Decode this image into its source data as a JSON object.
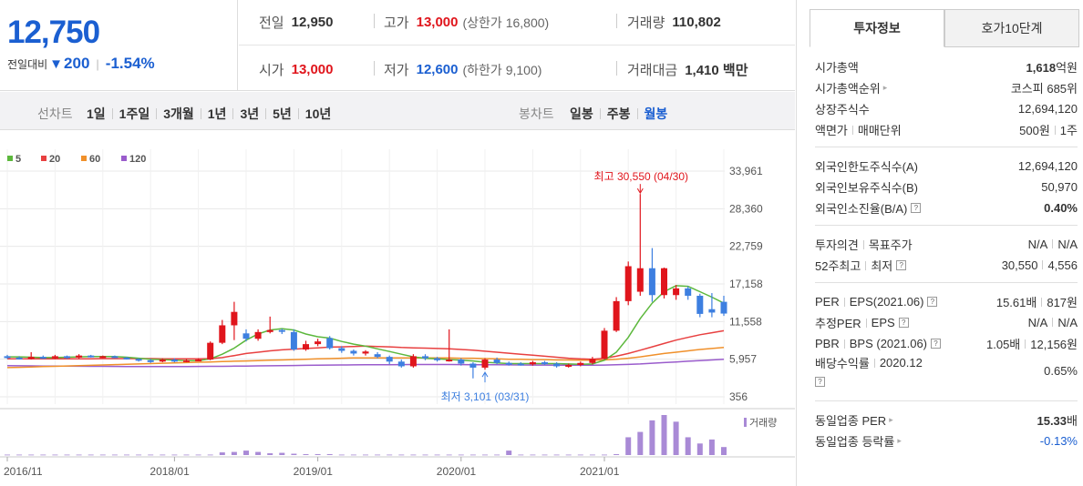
{
  "quote": {
    "price": "12,750",
    "change_label": "전일대비",
    "change_value": "200",
    "change_pct": "-1.54%",
    "prev_label": "전일",
    "prev_value": "12,950",
    "high_label": "고가",
    "high_value": "13,000",
    "upper_limit": "(상한가 16,800)",
    "volume_label": "거래량",
    "volume_value": "110,802",
    "open_label": "시가",
    "open_value": "13,000",
    "low_label": "저가",
    "low_value": "12,600",
    "lower_limit": "(하한가 9,100)",
    "amount_label": "거래대금",
    "amount_value": "1,410 백만"
  },
  "toolbar": {
    "line_label": "선차트",
    "line_items": [
      "1일",
      "1주일",
      "3개월",
      "1년",
      "3년",
      "5년",
      "10년"
    ],
    "candle_label": "봉차트",
    "candle_items": [
      "일봉",
      "주봉",
      "월봉"
    ],
    "candle_active": 2
  },
  "chart_data": {
    "type": "candlestick",
    "legend": [
      {
        "name": "5",
        "color": "#5cb83c"
      },
      {
        "name": "20",
        "color": "#e84040"
      },
      {
        "name": "60",
        "color": "#f0902a"
      },
      {
        "name": "120",
        "color": "#9a5ccc"
      }
    ],
    "yticks": [
      "33,961",
      "28,360",
      "22,759",
      "17,158",
      "11,558",
      "5,957",
      "356"
    ],
    "ytick_values": [
      33961,
      28360,
      22759,
      17158,
      11558,
      5957,
      356
    ],
    "xticks": [
      "2016/11",
      "2018/01",
      "2019/01",
      "2020/01",
      "2021/01"
    ],
    "xtick_index": [
      0,
      14,
      26,
      38,
      50
    ],
    "high_annotation": "최고 30,550 (04/30)",
    "low_annotation": "최저 3,101 (03/31)",
    "high_index": 53,
    "low_index": 40,
    "volume_label": "거래량",
    "candles": [
      {
        "o": 6400,
        "c": 6200,
        "h": 6600,
        "l": 6000
      },
      {
        "o": 6200,
        "c": 6000,
        "h": 6400,
        "l": 5900
      },
      {
        "o": 6000,
        "c": 6300,
        "h": 7000,
        "l": 5900
      },
      {
        "o": 6300,
        "c": 6100,
        "h": 6500,
        "l": 6000
      },
      {
        "o": 6100,
        "c": 6400,
        "h": 6600,
        "l": 6000
      },
      {
        "o": 6400,
        "c": 6200,
        "h": 6500,
        "l": 6000
      },
      {
        "o": 6200,
        "c": 6500,
        "h": 6700,
        "l": 6100
      },
      {
        "o": 6500,
        "c": 6300,
        "h": 6600,
        "l": 6200
      },
      {
        "o": 6300,
        "c": 6400,
        "h": 6500,
        "l": 6100
      },
      {
        "o": 6400,
        "c": 6200,
        "h": 6500,
        "l": 6100
      },
      {
        "o": 6200,
        "c": 6000,
        "h": 6300,
        "l": 5900
      },
      {
        "o": 6000,
        "c": 5800,
        "h": 6100,
        "l": 5600
      },
      {
        "o": 5800,
        "c": 5600,
        "h": 6000,
        "l": 5400
      },
      {
        "o": 5600,
        "c": 5900,
        "h": 6100,
        "l": 5500
      },
      {
        "o": 5900,
        "c": 5600,
        "h": 6100,
        "l": 5500
      },
      {
        "o": 5600,
        "c": 5800,
        "h": 6000,
        "l": 5500
      },
      {
        "o": 5800,
        "c": 5900,
        "h": 6100,
        "l": 5700
      },
      {
        "o": 5900,
        "c": 8400,
        "h": 8600,
        "l": 5800
      },
      {
        "o": 8400,
        "c": 11000,
        "h": 11800,
        "l": 8200
      },
      {
        "o": 11000,
        "c": 13000,
        "h": 14500,
        "l": 8800
      },
      {
        "o": 9800,
        "c": 9000,
        "h": 10400,
        "l": 8600
      },
      {
        "o": 9000,
        "c": 10000,
        "h": 10400,
        "l": 8700
      },
      {
        "o": 10000,
        "c": 10300,
        "h": 12300,
        "l": 9800
      },
      {
        "o": 10300,
        "c": 10100,
        "h": 10500,
        "l": 9700
      },
      {
        "o": 10000,
        "c": 7400,
        "h": 10400,
        "l": 7200
      },
      {
        "o": 7400,
        "c": 8200,
        "h": 8700,
        "l": 7200
      },
      {
        "o": 8200,
        "c": 8600,
        "h": 9000,
        "l": 7900
      },
      {
        "o": 9100,
        "c": 7600,
        "h": 9400,
        "l": 7400
      },
      {
        "o": 7600,
        "c": 7200,
        "h": 7900,
        "l": 6900
      },
      {
        "o": 7200,
        "c": 6800,
        "h": 7400,
        "l": 6500
      },
      {
        "o": 6800,
        "c": 7100,
        "h": 7300,
        "l": 6500
      },
      {
        "o": 6700,
        "c": 6300,
        "h": 7000,
        "l": 6100
      },
      {
        "o": 6300,
        "c": 5600,
        "h": 6500,
        "l": 5200
      },
      {
        "o": 5600,
        "c": 4900,
        "h": 5900,
        "l": 4700
      },
      {
        "o": 4900,
        "c": 6400,
        "h": 6700,
        "l": 4700
      },
      {
        "o": 6400,
        "c": 6100,
        "h": 6700,
        "l": 5800
      },
      {
        "o": 6100,
        "c": 5800,
        "h": 6300,
        "l": 5600
      },
      {
        "o": 5800,
        "c": 5900,
        "h": 10400,
        "l": 5600
      },
      {
        "o": 5900,
        "c": 5300,
        "h": 6100,
        "l": 5000
      },
      {
        "o": 5300,
        "c": 4700,
        "h": 5500,
        "l": 3101
      },
      {
        "o": 4700,
        "c": 5900,
        "h": 6100,
        "l": 4400
      },
      {
        "o": 5900,
        "c": 5400,
        "h": 6200,
        "l": 5200
      },
      {
        "o": 5400,
        "c": 5300,
        "h": 5600,
        "l": 5000
      },
      {
        "o": 5300,
        "c": 5200,
        "h": 5500,
        "l": 5000
      },
      {
        "o": 5200,
        "c": 5500,
        "h": 5700,
        "l": 5000
      },
      {
        "o": 5500,
        "c": 5300,
        "h": 5700,
        "l": 5100
      },
      {
        "o": 5300,
        "c": 4900,
        "h": 5500,
        "l": 4700
      },
      {
        "o": 4900,
        "c": 5100,
        "h": 5300,
        "l": 4700
      },
      {
        "o": 5100,
        "c": 5400,
        "h": 5600,
        "l": 4900
      },
      {
        "o": 5400,
        "c": 6000,
        "h": 6300,
        "l": 5200
      },
      {
        "o": 6000,
        "c": 10200,
        "h": 10600,
        "l": 5900
      },
      {
        "o": 10200,
        "c": 14600,
        "h": 15200,
        "l": 10000
      },
      {
        "o": 14600,
        "c": 19800,
        "h": 20500,
        "l": 14000
      },
      {
        "o": 16000,
        "c": 19500,
        "h": 30550,
        "l": 15400
      },
      {
        "o": 19500,
        "c": 15500,
        "h": 22500,
        "l": 14500
      },
      {
        "o": 15500,
        "c": 19500,
        "h": 19600,
        "l": 15000
      },
      {
        "o": 15500,
        "c": 16500,
        "h": 17000,
        "l": 14800
      },
      {
        "o": 16500,
        "c": 15400,
        "h": 16800,
        "l": 14800
      },
      {
        "o": 15400,
        "c": 12700,
        "h": 15700,
        "l": 12200
      },
      {
        "o": 13400,
        "c": 12900,
        "h": 15800,
        "l": 12200
      },
      {
        "o": 14500,
        "c": 12750,
        "h": 15400,
        "l": 12400
      }
    ],
    "ma5": [
      6300,
      6300,
      6250,
      6200,
      6200,
      6250,
      6300,
      6350,
      6350,
      6350,
      6250,
      6100,
      5950,
      5900,
      5800,
      5750,
      5750,
      6000,
      6700,
      7600,
      8800,
      9700,
      10300,
      10500,
      10300,
      9700,
      9300,
      9100,
      8600,
      8200,
      7900,
      7500,
      7100,
      6700,
      6300,
      6100,
      6000,
      5900,
      5800,
      5700,
      5500,
      5400,
      5300,
      5300,
      5300,
      5300,
      5300,
      5250,
      5200,
      5250,
      5800,
      7000,
      9200,
      12000,
      14300,
      16000,
      16900,
      16800,
      16000,
      15200,
      14300
    ],
    "ma20": [
      6000,
      6000,
      6000,
      6000,
      6000,
      6000,
      6000,
      6000,
      6050,
      6050,
      6050,
      6050,
      6050,
      6000,
      6000,
      6000,
      6000,
      6050,
      6200,
      6500,
      6800,
      7000,
      7200,
      7350,
      7450,
      7550,
      7650,
      7750,
      7800,
      7850,
      7900,
      7850,
      7800,
      7700,
      7650,
      7600,
      7550,
      7500,
      7400,
      7300,
      7150,
      7000,
      6850,
      6700,
      6550,
      6400,
      6250,
      6100,
      6000,
      5950,
      6100,
      6400,
      6800,
      7300,
      7800,
      8300,
      8800,
      9200,
      9600,
      9900,
      10200
    ],
    "ma60": [
      4700,
      4750,
      4800,
      4850,
      4900,
      4950,
      5000,
      5050,
      5100,
      5150,
      5200,
      5250,
      5300,
      5350,
      5400,
      5450,
      5500,
      5550,
      5600,
      5650,
      5700,
      5750,
      5800,
      5850,
      5900,
      5950,
      6000,
      6050,
      6100,
      6150,
      6150,
      6150,
      6150,
      6150,
      6150,
      6150,
      6150,
      6150,
      6100,
      6100,
      6050,
      6000,
      5950,
      5950,
      5900,
      5900,
      5850,
      5850,
      5800,
      5800,
      5850,
      5950,
      6100,
      6300,
      6550,
      6800,
      7000,
      7200,
      7400,
      7550,
      7700
    ],
    "ma120": [
      5000,
      4980,
      4960,
      4940,
      4930,
      4920,
      4910,
      4900,
      4890,
      4880,
      4870,
      4870,
      4870,
      4870,
      4870,
      4870,
      4880,
      4890,
      4900,
      4920,
      4940,
      4960,
      4980,
      5000,
      5020,
      5040,
      5060,
      5080,
      5100,
      5110,
      5120,
      5130,
      5140,
      5150,
      5160,
      5160,
      5160,
      5160,
      5150,
      5140,
      5130,
      5120,
      5110,
      5100,
      5090,
      5080,
      5070,
      5060,
      5060,
      5060,
      5080,
      5120,
      5180,
      5250,
      5350,
      5450,
      5550,
      5650,
      5750,
      5850,
      5950
    ],
    "volume": [
      1,
      1,
      1,
      1,
      1,
      1,
      1,
      1,
      1,
      1,
      1,
      1,
      1,
      1,
      1,
      1,
      1,
      1,
      6,
      7,
      10,
      7,
      4,
      5,
      3,
      2,
      2,
      2,
      1,
      1,
      1,
      1,
      1,
      1,
      1,
      1,
      1,
      1,
      1,
      1,
      1,
      1,
      10,
      1,
      1,
      1,
      1,
      1,
      1,
      1,
      1,
      2,
      40,
      52,
      78,
      90,
      75,
      40,
      26,
      35,
      18
    ]
  },
  "panel": {
    "tabs": [
      "투자정보",
      "호가10단계"
    ],
    "group1": [
      {
        "label": "시가총액",
        "value_b": "1,618",
        "value": "억원"
      },
      {
        "label": "시가총액순위",
        "arrow": true,
        "value": "코스피 685위"
      },
      {
        "label": "상장주식수",
        "value": "12,694,120"
      },
      {
        "label": "액면가",
        "label2": "매매단위",
        "value": "500원",
        "value2": "1주"
      }
    ],
    "group2": [
      {
        "label": "외국인한도주식수(A)",
        "value": "12,694,120"
      },
      {
        "label": "외국인보유주식수(B)",
        "value": "50,970"
      },
      {
        "label": "외국인소진율(B/A)",
        "help": true,
        "value_b": "0.40%"
      }
    ],
    "group3": [
      {
        "label": "투자의견",
        "label2": "목표주가",
        "value": "N/A",
        "value2": "N/A"
      },
      {
        "label": "52주최고",
        "label2": "최저",
        "help": true,
        "value": "30,550",
        "value2": "4,556"
      }
    ],
    "group4": [
      {
        "label": "PER",
        "label2": "EPS(2021.06)",
        "help": true,
        "value": "15.61배",
        "value2": "817원"
      },
      {
        "label": "추정PER",
        "label2": "EPS",
        "help": true,
        "value": "N/A",
        "value2": "N/A"
      },
      {
        "label": "PBR",
        "label2": "BPS (2021.06)",
        "help": true,
        "value": "1.05배",
        "value2": "12,156원"
      },
      {
        "label": "배당수익률",
        "label2": "2020.12",
        "value": "0.65%"
      }
    ],
    "group5": [
      {
        "label": "동일업종 PER",
        "arrow": true,
        "value_b": "15.33",
        "value": "배"
      },
      {
        "label": "동일업종 등락률",
        "arrow": true,
        "value": "-0.13%",
        "pos": true
      }
    ],
    "help_glyph": "?",
    "arrow_glyph": "▸"
  }
}
